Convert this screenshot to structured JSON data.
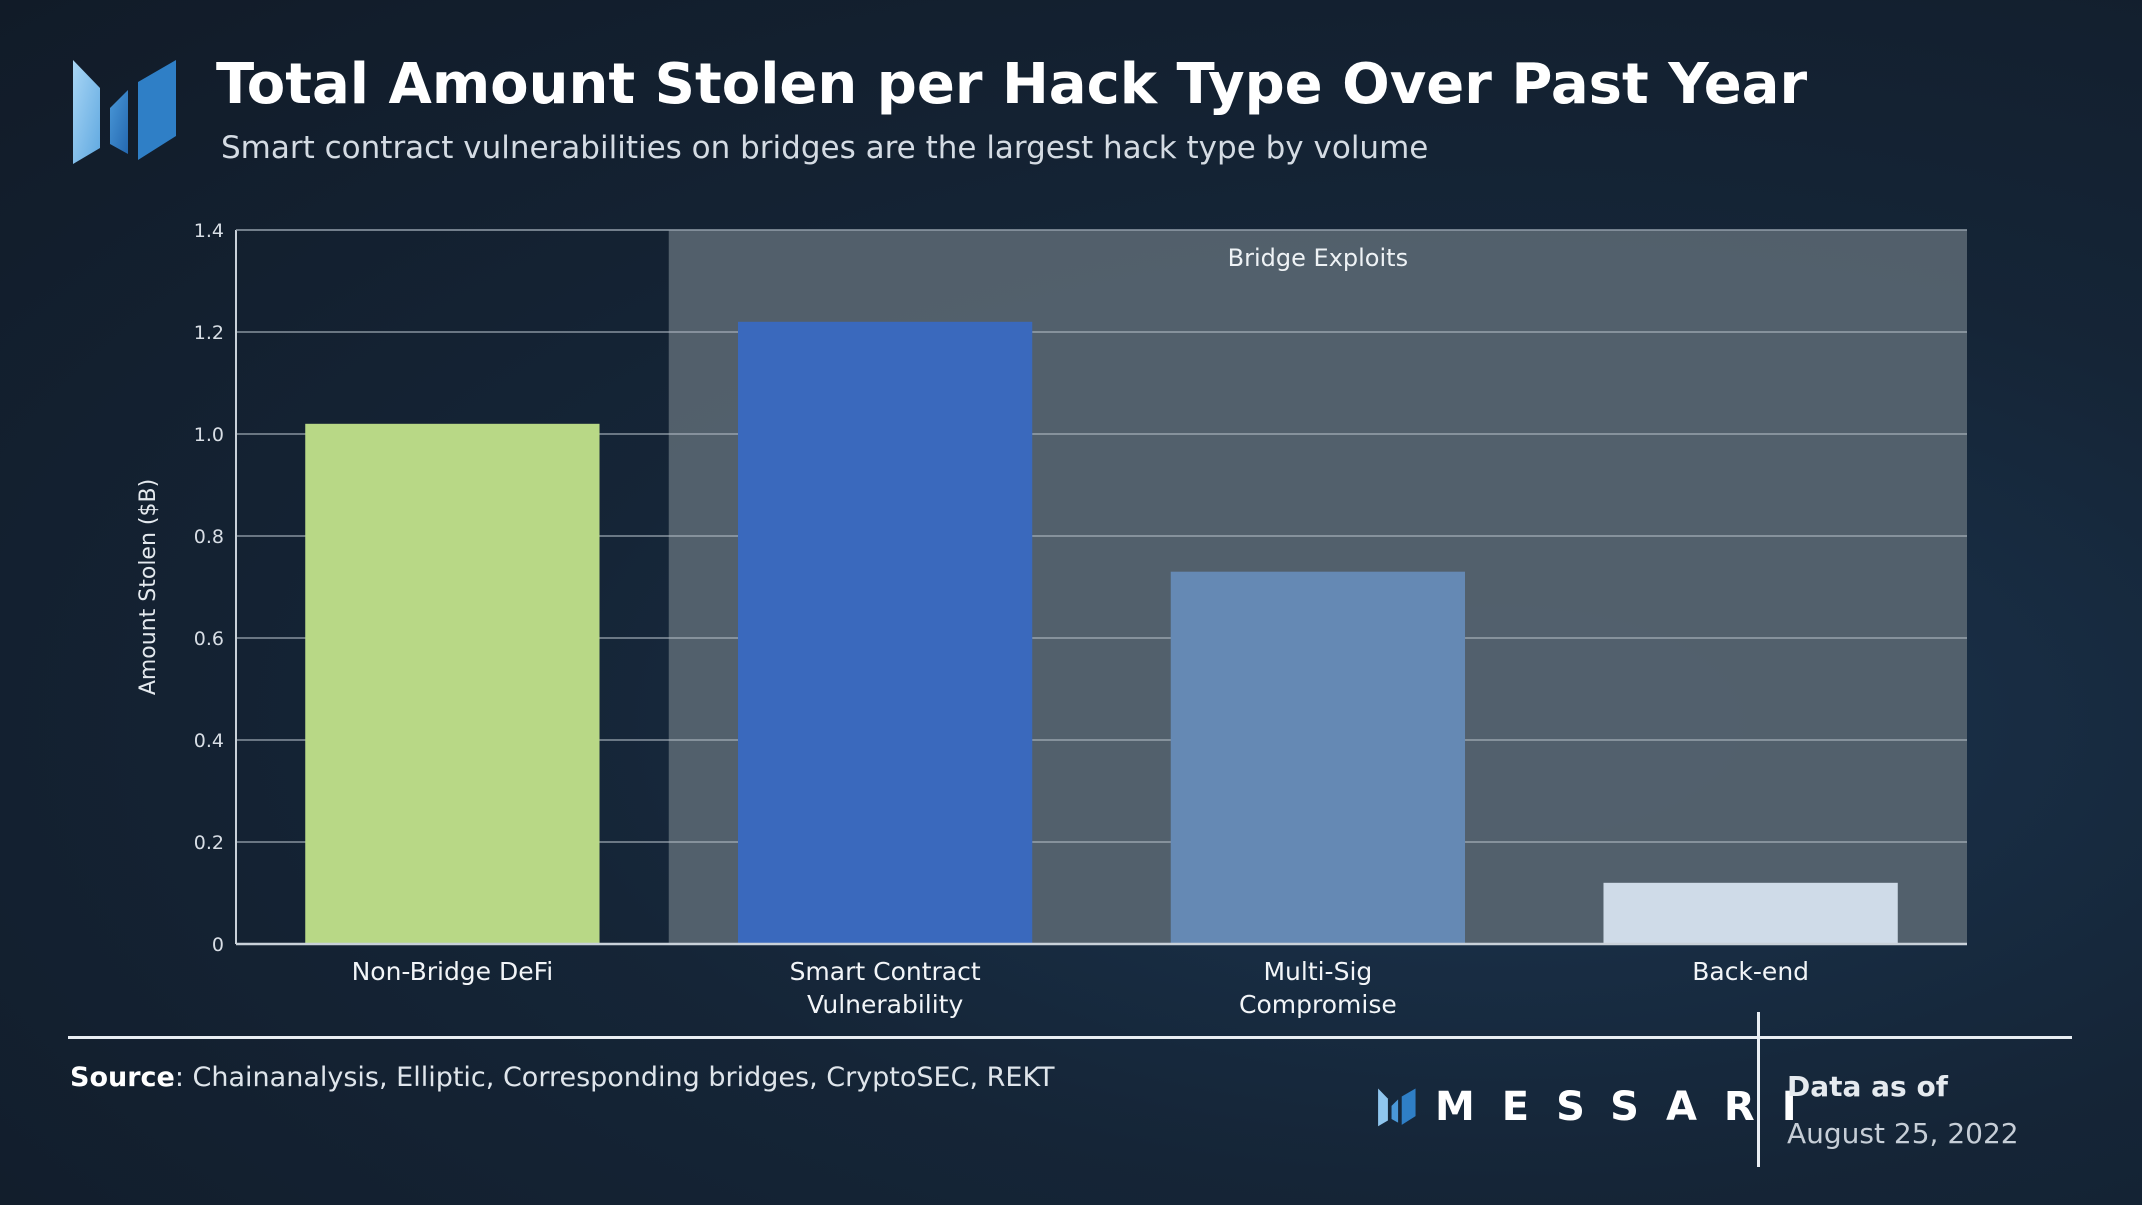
{
  "header": {
    "title": "Total Amount Stolen per Hack Type Over Past Year",
    "subtitle": "Smart contract vulnerabilities on bridges are the largest hack type by volume"
  },
  "chart_data": {
    "type": "bar",
    "categories": [
      "Non-Bridge DeFi",
      "Smart Contract Vulnerability",
      "Multi-Sig Compromise",
      "Back-end"
    ],
    "category_lines": [
      [
        "Non-Bridge DeFi"
      ],
      [
        "Smart Contract",
        "Vulnerability"
      ],
      [
        "Multi-Sig",
        "Compromise"
      ],
      [
        "Back-end"
      ]
    ],
    "values": [
      1.02,
      1.22,
      0.73,
      0.12
    ],
    "colors": [
      "#b8d886",
      "#3a69bd",
      "#6589b4",
      "#cfdbe8"
    ],
    "ylabel": "Amount Stolen ($B)",
    "ylim": [
      0,
      1.4
    ],
    "yticks": [
      0,
      0.2,
      0.4,
      0.6,
      0.8,
      1.0,
      1.2,
      1.4
    ],
    "ytick_labels": [
      "0",
      "0.2",
      "0.4",
      "0.6",
      "0.8",
      "1.0",
      "1.2",
      "1.4"
    ],
    "grid": true,
    "annotations": [
      {
        "text": "Bridge Exploits",
        "span_categories": [
          1,
          3
        ]
      }
    ]
  },
  "footer": {
    "source_label": "Source",
    "source_text": ":  Chainanalysis, Elliptic, Corresponding bridges, CryptoSEC, REKT",
    "brand": "MESSARI",
    "asof_label": "Data as of",
    "asof_date": "August 25, 2022"
  },
  "colors": {
    "background": "#152537",
    "highlight_band": "#55636f",
    "grid": "#aeb8c2",
    "logo_light": "#8fc6ee",
    "logo_dark": "#2f7fc6"
  },
  "icons": {
    "logo": "messari-logo-icon"
  }
}
